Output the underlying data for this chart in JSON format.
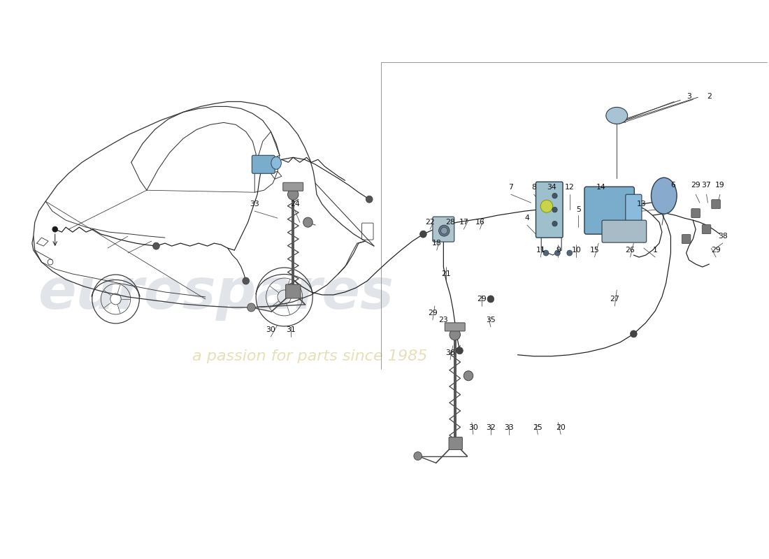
{
  "bg_color": "#FFFFFF",
  "car_color": "#333333",
  "line_color": "#1A1A1A",
  "part_color": "#555555",
  "accent_blue": "#7AADCC",
  "accent_cyan": "#A8D4E6",
  "accent_yellow_green": "#C8D44A",
  "watermark1": "eurospares",
  "watermark2": "a passion for parts since 1985",
  "wm1_color": "#C5CDD5",
  "wm2_color": "#D4CC88",
  "labels": [
    [
      "1",
      9.32,
      4.42
    ],
    [
      "2",
      10.12,
      6.62
    ],
    [
      "3",
      9.82,
      6.62
    ],
    [
      "4",
      7.42,
      4.88
    ],
    [
      "5",
      8.18,
      5.0
    ],
    [
      "6",
      9.58,
      5.35
    ],
    [
      "7",
      7.18,
      5.32
    ],
    [
      "8",
      7.52,
      5.32
    ],
    [
      "9",
      7.88,
      4.42
    ],
    [
      "10",
      8.15,
      4.42
    ],
    [
      "11",
      7.62,
      4.42
    ],
    [
      "12",
      8.05,
      5.32
    ],
    [
      "13",
      9.12,
      5.08
    ],
    [
      "14",
      8.52,
      5.32
    ],
    [
      "15",
      8.42,
      4.42
    ],
    [
      "16",
      6.72,
      4.82
    ],
    [
      "17",
      6.48,
      4.82
    ],
    [
      "18",
      6.08,
      4.52
    ],
    [
      "19",
      10.28,
      5.35
    ],
    [
      "20",
      7.92,
      1.88
    ],
    [
      "21",
      6.22,
      4.08
    ],
    [
      "22",
      5.98,
      4.82
    ],
    [
      "23",
      6.18,
      3.42
    ],
    [
      "24",
      3.98,
      5.08
    ],
    [
      "25",
      7.58,
      1.88
    ],
    [
      "26",
      8.95,
      4.42
    ],
    [
      "27",
      8.72,
      3.72
    ],
    [
      "28",
      6.28,
      4.82
    ],
    [
      "29",
      9.92,
      5.35
    ],
    [
      "29",
      10.22,
      4.42
    ],
    [
      "29",
      6.02,
      3.52
    ],
    [
      "29",
      6.75,
      3.72
    ],
    [
      "30",
      3.62,
      3.28
    ],
    [
      "30",
      6.62,
      1.88
    ],
    [
      "31",
      3.92,
      3.28
    ],
    [
      "32",
      6.88,
      1.88
    ],
    [
      "33",
      3.38,
      5.08
    ],
    [
      "33",
      7.15,
      1.88
    ],
    [
      "34",
      7.78,
      5.32
    ],
    [
      "35",
      6.88,
      3.42
    ],
    [
      "36",
      6.28,
      2.95
    ],
    [
      "37",
      10.08,
      5.35
    ],
    [
      "38",
      10.32,
      4.62
    ]
  ]
}
